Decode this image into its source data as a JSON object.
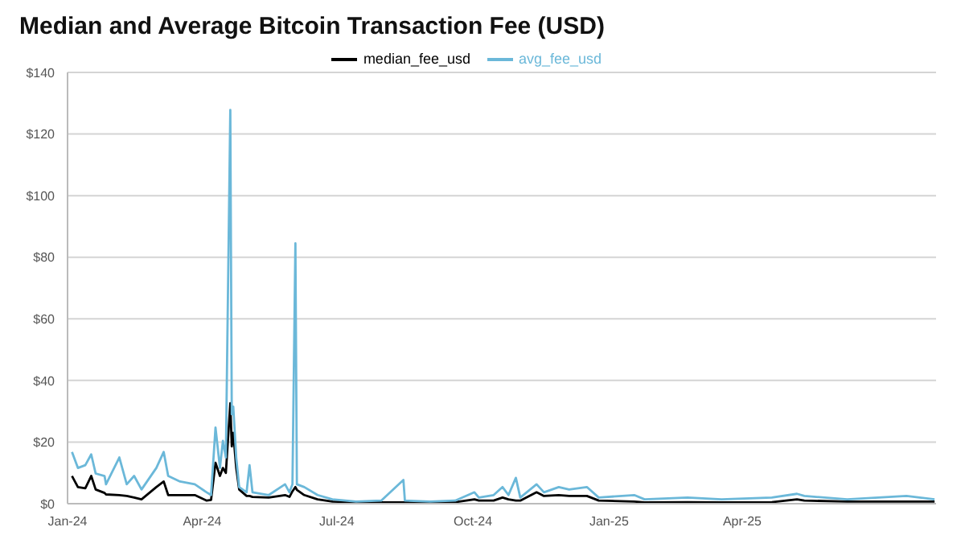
{
  "chart_data": {
    "type": "line",
    "title": "Median and Average Bitcoin Transaction Fee (USD)",
    "x": [
      "2024-01-04",
      "2024-01-08",
      "2024-01-13",
      "2024-01-17",
      "2024-01-20",
      "2024-01-26",
      "2024-01-27",
      "2024-02-05",
      "2024-02-10",
      "2024-02-15",
      "2024-02-20",
      "2024-03-01",
      "2024-03-06",
      "2024-03-09",
      "2024-03-17",
      "2024-03-27",
      "2024-04-04",
      "2024-04-07",
      "2024-04-10",
      "2024-04-13",
      "2024-04-15",
      "2024-04-17",
      "2024-04-20",
      "2024-04-21",
      "2024-04-22",
      "2024-04-24",
      "2024-04-26",
      "2024-05-01",
      "2024-05-03",
      "2024-05-05",
      "2024-05-16",
      "2024-05-27",
      "2024-05-30",
      "2024-06-01",
      "2024-06-03",
      "2024-06-04",
      "2024-06-09",
      "2024-06-18",
      "2024-06-28",
      "2024-07-14",
      "2024-07-31",
      "2024-08-15",
      "2024-08-16",
      "2024-09-02",
      "2024-09-19",
      "2024-10-02",
      "2024-10-05",
      "2024-10-15",
      "2024-10-21",
      "2024-10-25",
      "2024-10-30",
      "2024-11-02",
      "2024-11-13",
      "2024-11-18",
      "2024-11-28",
      "2024-12-05",
      "2024-12-17",
      "2024-12-25",
      "2025-01-18",
      "2025-01-25",
      "2025-02-23",
      "2025-03-18",
      "2025-04-21",
      "2025-05-08",
      "2025-05-13",
      "2025-06-11",
      "2025-07-02",
      "2025-07-21",
      "2025-08-09"
    ],
    "series": [
      {
        "name": "median_fee_usd",
        "color": "#000000",
        "values": [
          9,
          5.4,
          5,
          9,
          4.6,
          3.5,
          3,
          2.8,
          2.5,
          2,
          1.4,
          5.4,
          7.2,
          2.8,
          2.8,
          2.8,
          1,
          1.2,
          13.3,
          9,
          11.6,
          10,
          32.6,
          18.6,
          23,
          11.6,
          4.6,
          2.5,
          2.5,
          2.2,
          2,
          2.8,
          2.2,
          4,
          5.4,
          4.5,
          2.8,
          1.4,
          0.7,
          0.4,
          0.4,
          0.4,
          0.4,
          0.4,
          0.5,
          1.4,
          1,
          1,
          2,
          1.4,
          1,
          1,
          3.7,
          2.5,
          2.8,
          2.5,
          2.5,
          1,
          0.7,
          0.4,
          0.5,
          0.4,
          0.5,
          1.4,
          1,
          0.7,
          0.7,
          0.7,
          0.7
        ]
      },
      {
        "name": "avg_fee_usd",
        "color": "#6bb8d9",
        "values": [
          16.8,
          11.6,
          12.5,
          16,
          9.8,
          9,
          6.3,
          15,
          6.3,
          9,
          4.6,
          11.6,
          16.8,
          9,
          7.2,
          6.3,
          3.7,
          2.8,
          24.7,
          11.6,
          20.4,
          15,
          127.8,
          29,
          31.5,
          15,
          5.4,
          3.7,
          12.5,
          3.7,
          2.8,
          6.3,
          3.7,
          6.3,
          84.5,
          6.3,
          5.4,
          2.8,
          1.4,
          0.7,
          1,
          7.7,
          1,
          0.7,
          1,
          3.7,
          2,
          2.8,
          5.4,
          2.8,
          8.4,
          2,
          6.3,
          3.7,
          5.4,
          4.6,
          5.4,
          2,
          2.8,
          1.4,
          2,
          1.4,
          2,
          3.2,
          2.5,
          1.4,
          2,
          2.5,
          1.4
        ]
      }
    ],
    "xlim": [
      "2024-01-01",
      "2025-08-10"
    ],
    "xticks": [
      {
        "value": "2024-01-01",
        "label": "Jan-24"
      },
      {
        "value": "2024-04-01",
        "label": "Apr-24"
      },
      {
        "value": "2024-07-01",
        "label": "Jul-24"
      },
      {
        "value": "2024-10-01",
        "label": "Oct-24"
      },
      {
        "value": "2025-01-01",
        "label": "Jan-25"
      },
      {
        "value": "2025-04-01",
        "label": "Apr-25"
      }
    ],
    "ylim": [
      0,
      140
    ],
    "yticks": [
      {
        "value": 0,
        "label": "$0"
      },
      {
        "value": 20,
        "label": "$20"
      },
      {
        "value": 40,
        "label": "$40"
      },
      {
        "value": 60,
        "label": "$60"
      },
      {
        "value": 80,
        "label": "$80"
      },
      {
        "value": 100,
        "label": "$100"
      },
      {
        "value": 120,
        "label": "$120"
      },
      {
        "value": 140,
        "label": "$140"
      }
    ],
    "grid": "y",
    "legend": "top",
    "marker": "none",
    "line_style": "solid"
  }
}
